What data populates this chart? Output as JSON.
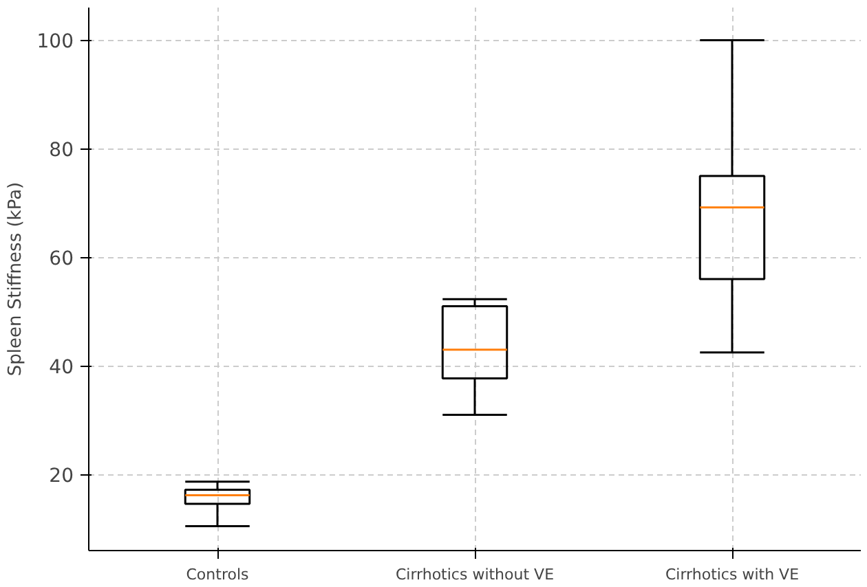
{
  "chart_data": {
    "type": "box",
    "ylabel": "Spleen Stiffness (kPa)",
    "categories": [
      "Controls",
      "Cirrhotics without VE",
      "Cirrhotics with VE"
    ],
    "boxes": [
      {
        "low": 10.5,
        "q1": 14.6,
        "median": 16.2,
        "q3": 17.2,
        "high": 18.7
      },
      {
        "low": 31,
        "q1": 37.7,
        "median": 43,
        "q3": 51,
        "high": 52.3
      },
      {
        "low": 42.5,
        "q1": 56,
        "median": 69.2,
        "q3": 75,
        "high": 100
      }
    ],
    "color": "#000000",
    "ylim": [
      6,
      106
    ],
    "yticks": [
      20,
      40,
      60,
      80,
      100
    ],
    "grid": true
  }
}
